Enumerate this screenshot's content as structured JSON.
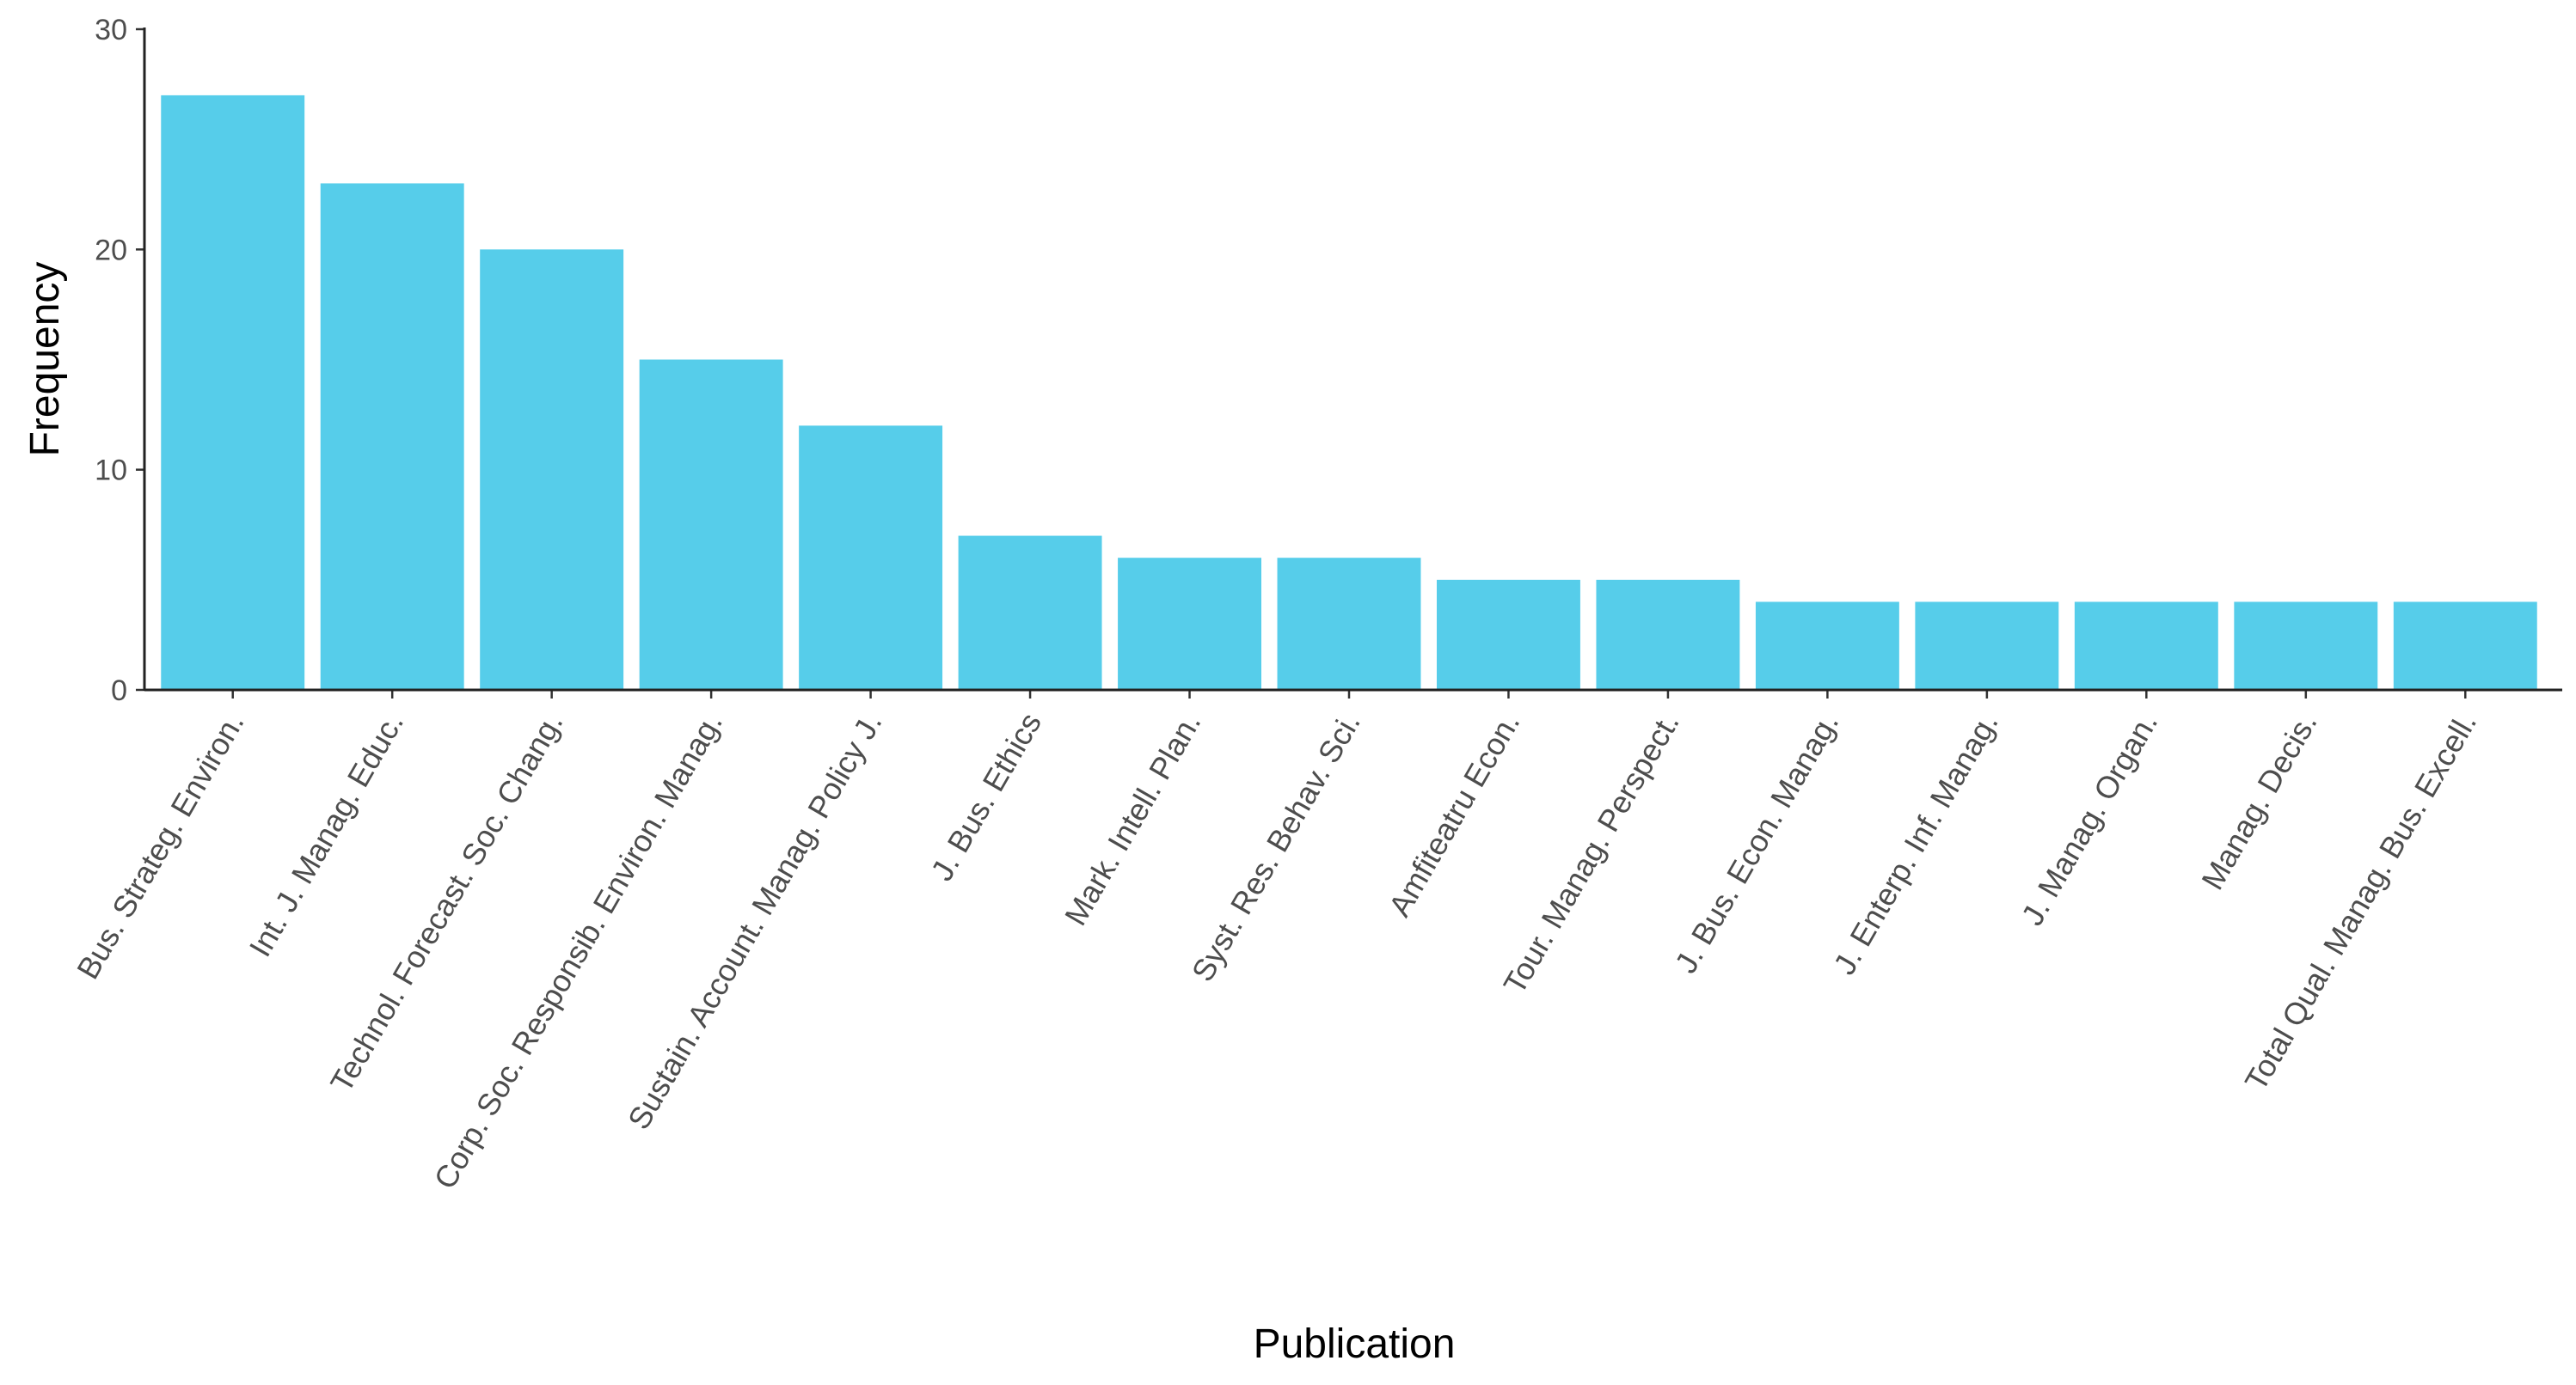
{
  "chart_data": {
    "type": "bar",
    "x_label": "Publication",
    "y_label": "Frequency",
    "categories": [
      "Bus. Strateg. Environ.",
      "Int. J. Manag. Educ.",
      "Technol. Forecast. Soc. Chang.",
      "Corp. Soc. Responsib. Environ. Manag.",
      "Sustain. Account. Manag. Policy J.",
      "J. Bus. Ethics",
      "Mark. Intell. Plan.",
      "Syst. Res. Behav. Sci.",
      "Amfiteatru Econ.",
      "Tour. Manag. Perspect.",
      "J. Bus. Econ. Manag.",
      "J. Enterp. Inf. Manag.",
      "J. Manag. Organ.",
      "Manag. Decis.",
      "Total Qual. Manag. Bus. Excell."
    ],
    "values": [
      27,
      23,
      20,
      15,
      12,
      7,
      6,
      6,
      5,
      5,
      4,
      4,
      4,
      4,
      4
    ],
    "color": "#56cdea",
    "ylim": [
      0,
      30
    ],
    "yticks": [
      0,
      10,
      20,
      30
    ],
    "grid": false
  }
}
